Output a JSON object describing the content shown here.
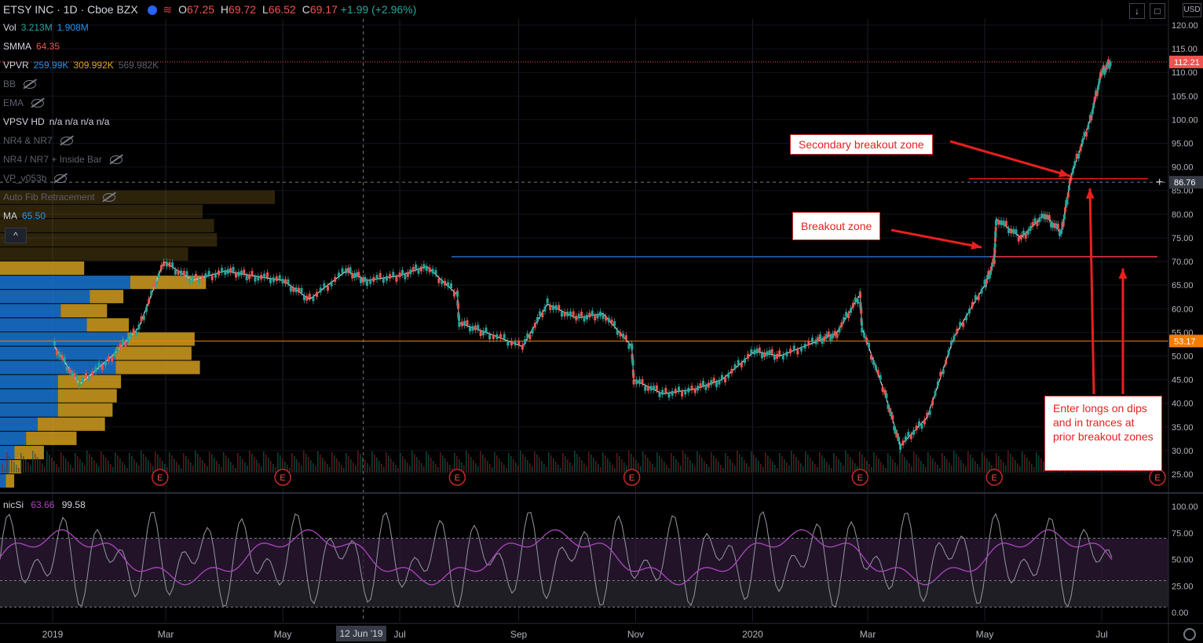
{
  "header": {
    "symbol": "ETSY INC · 1D · Cboe BZX",
    "open_label": "O",
    "open": "67.25",
    "high_label": "H",
    "high": "69.72",
    "low_label": "L",
    "low": "66.52",
    "close_label": "C",
    "close": "69.17",
    "change": "+1.99 (+2.96%)"
  },
  "indicators": [
    {
      "name": "Vol",
      "values": [
        "3.213M",
        "1.908M"
      ],
      "colors": [
        "#26a69a",
        "#2196f3"
      ],
      "hidden": false
    },
    {
      "name": "SMMA",
      "values": [
        "64.35"
      ],
      "colors": [
        "#ef5350"
      ],
      "hidden": false
    },
    {
      "name": "VPVR",
      "values": [
        "259.99K",
        "309.992K",
        "569.982K"
      ],
      "colors": [
        "#2196f3",
        "#e0a91f",
        "#5d606b"
      ],
      "hidden": false
    },
    {
      "name": "BB",
      "values": [],
      "colors": [],
      "hidden": true
    },
    {
      "name": "EMA",
      "values": [],
      "colors": [],
      "hidden": true
    },
    {
      "name": "VPSV HD",
      "values": [
        "n/a n/a n/a n/a"
      ],
      "colors": [
        "#d1d4dc"
      ],
      "hidden": false
    },
    {
      "name": "NR4 & NR7",
      "values": [],
      "colors": [],
      "hidden": true
    },
    {
      "name": "NR4 / NR7 + Inside Bar",
      "values": [],
      "colors": [],
      "hidden": true
    },
    {
      "name": "VP_v053b",
      "values": [],
      "colors": [],
      "hidden": true
    },
    {
      "name": "Auto Fib Retracement",
      "values": [],
      "colors": [],
      "hidden": true
    },
    {
      "name": "MA",
      "values": [
        "65.50"
      ],
      "colors": [
        "#2196f3"
      ],
      "hidden": false
    }
  ],
  "collapse_label": "^",
  "usd_label": "USD",
  "price_axis": {
    "ticks": [
      "120.00",
      "115.00",
      "110.00",
      "105.00",
      "100.00",
      "95.00",
      "90.00",
      "85.00",
      "80.00",
      "75.00",
      "70.00",
      "65.00",
      "60.00",
      "55.00",
      "50.00",
      "45.00",
      "40.00",
      "35.00",
      "30.00",
      "25.00"
    ],
    "tick_values": [
      120,
      115,
      110,
      105,
      100,
      95,
      90,
      85,
      80,
      75,
      70,
      65,
      60,
      55,
      50,
      45,
      40,
      35,
      30,
      25
    ],
    "badges": [
      {
        "label": "112.21",
        "value": 112.21,
        "color": "#ef5350"
      },
      {
        "label": "86.76",
        "value": 86.76,
        "color": "#363a45"
      },
      {
        "label": "53.17",
        "value": 53.17,
        "color": "#f57c00"
      }
    ]
  },
  "time_axis": {
    "labels": [
      "2019",
      "Mar",
      "May",
      "Jul",
      "Sep",
      "Nov",
      "2020",
      "Mar",
      "May",
      "Jul"
    ],
    "dates": [
      "2019-01-01",
      "2019-03-01",
      "2019-05-01",
      "2019-07-01",
      "2019-09-01",
      "2019-11-01",
      "2020-01-01",
      "2020-03-01",
      "2020-05-01",
      "2020-07-01"
    ],
    "crosshair_date": "12 Jun '19"
  },
  "earnings_marker": "E",
  "earnings_dates": [
    "2019-02-26",
    "2019-05-01",
    "2019-07-31",
    "2019-10-30",
    "2020-02-26",
    "2020-05-06",
    "2020-08-05"
  ],
  "annotations": {
    "secondary": "Secondary breakout zone",
    "breakout": "Breakout zone",
    "enter": "Enter longs on dips and in trances at prior breakout zones"
  },
  "oscillator": {
    "name": "nicSi",
    "value1": "63.66",
    "value2": "99.58",
    "ticks": [
      "100.00",
      "75.00",
      "50.00",
      "25.00",
      "0.00"
    ],
    "tick_values": [
      100,
      75,
      50,
      25,
      0
    ]
  },
  "chart_data": {
    "type": "line",
    "title": "",
    "xlabel": "",
    "ylabel": "",
    "ylim": [
      22,
      122
    ],
    "x": [
      "2019-01-02",
      "2019-01-15",
      "2019-02-01",
      "2019-02-15",
      "2019-02-28",
      "2019-03-15",
      "2019-04-01",
      "2019-04-15",
      "2019-05-01",
      "2019-05-15",
      "2019-06-03",
      "2019-06-14",
      "2019-07-01",
      "2019-07-15",
      "2019-07-31",
      "2019-08-01",
      "2019-08-15",
      "2019-09-03",
      "2019-09-16",
      "2019-10-01",
      "2019-10-15",
      "2019-10-30",
      "2019-10-31",
      "2019-11-15",
      "2019-12-02",
      "2019-12-16",
      "2020-01-02",
      "2020-01-15",
      "2020-02-03",
      "2020-02-14",
      "2020-02-26",
      "2020-02-27",
      "2020-03-10",
      "2020-03-18",
      "2020-04-01",
      "2020-04-15",
      "2020-05-01",
      "2020-05-06",
      "2020-05-07",
      "2020-05-20",
      "2020-06-01",
      "2020-06-10",
      "2020-06-15",
      "2020-06-25",
      "2020-07-01",
      "2020-07-06"
    ],
    "series": [
      {
        "values": [
          52,
          44,
          50,
          56,
          70,
          66,
          68,
          67,
          66,
          62,
          68,
          66,
          67,
          69,
          63,
          57,
          55,
          52,
          61,
          58,
          59,
          52,
          45,
          42,
          43,
          45,
          51,
          50,
          53,
          55,
          63,
          56,
          42,
          31,
          37,
          54,
          65,
          70,
          79,
          75,
          80,
          76,
          88,
          100,
          110,
          112.21
        ]
      }
    ],
    "volume_profile_levels": [
      {
        "price": 70,
        "up": 31,
        "down": 8
      },
      {
        "price": 67,
        "up": 21,
        "down": 11
      },
      {
        "price": 60,
        "up": 44,
        "down": 16
      }
    ],
    "horizontal_levels": {
      "secondary_breakout": 87.5,
      "breakout": 71,
      "support": 53.17
    }
  }
}
